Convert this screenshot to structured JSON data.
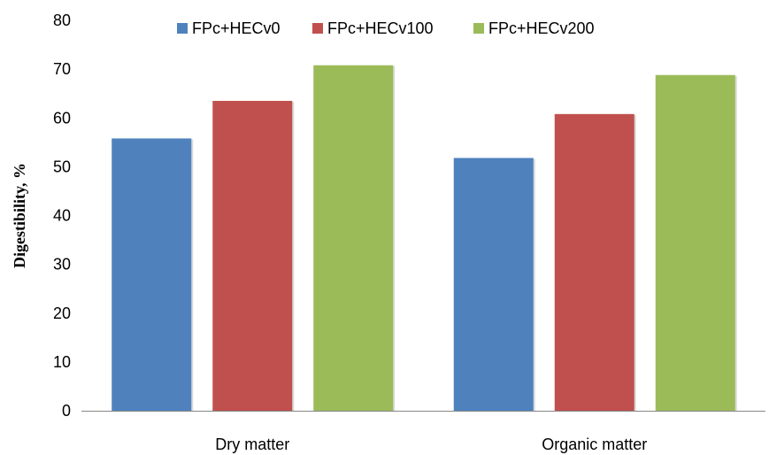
{
  "chart_data": {
    "type": "bar",
    "title": "",
    "xlabel": "",
    "ylabel": "Digestibility, %",
    "ylim": [
      0,
      80
    ],
    "yticks": [
      "0",
      "10",
      "20",
      "30",
      "40",
      "50",
      "60",
      "70",
      "80"
    ],
    "categories": [
      "Dry matter",
      "Organic matter"
    ],
    "series": [
      {
        "name": "FPc+HECv0",
        "values": [
          55.8,
          51.8
        ],
        "color": "#4F81BD"
      },
      {
        "name": "FPc+HECv100",
        "values": [
          63.5,
          60.8
        ],
        "color": "#C0504D"
      },
      {
        "name": "FPc+HECv200",
        "values": [
          70.8,
          68.8
        ],
        "color": "#9BBB59"
      }
    ],
    "grid": false,
    "legend_position": "top"
  }
}
